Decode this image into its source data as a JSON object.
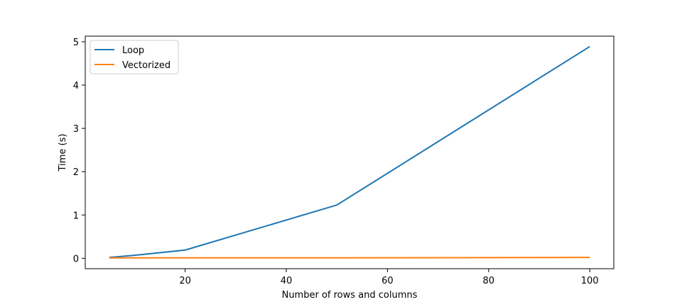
{
  "chart_data": {
    "type": "line",
    "title": "",
    "xlabel": "Number of rows and columns",
    "ylabel": "Time (s)",
    "xlim": [
      0.25,
      104.75
    ],
    "ylim": [
      -0.24,
      5.13
    ],
    "xticks": [
      20,
      40,
      60,
      80,
      100
    ],
    "yticks": [
      0,
      1,
      2,
      3,
      4,
      5
    ],
    "grid": false,
    "legend_position": "upper-left",
    "series": [
      {
        "name": "Loop",
        "color": "#1f77b4",
        "x": [
          5,
          10,
          20,
          50,
          100
        ],
        "y": [
          0.02,
          0.07,
          0.19,
          1.23,
          4.89
        ]
      },
      {
        "name": "Vectorized",
        "color": "#ff7f0e",
        "x": [
          5,
          10,
          20,
          50,
          100
        ],
        "y": [
          0.01,
          0.01,
          0.01,
          0.01,
          0.02
        ]
      }
    ]
  }
}
